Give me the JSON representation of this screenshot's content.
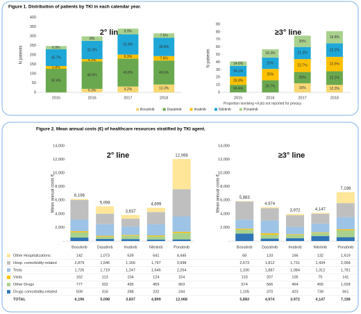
{
  "figure_titles": [
    "Figure 1. Distribution of patients by TKI in each calendar year.",
    "Figure 2. Mean annual costs (€) of healthcare resources stratified by TKI agent."
  ],
  "chart_data": [
    {
      "type": "stacked_bar",
      "stack": "percent",
      "title": "2° line",
      "ylabel": "N patients",
      "categories": [
        "2015",
        "2016",
        "2017",
        "2018"
      ],
      "totals": [
        250,
        300,
        340,
        315
      ],
      "ylim": [
        0,
        400
      ],
      "yticks": [
        0,
        50,
        100,
        150,
        200,
        250,
        300,
        350,
        400
      ],
      "series": [
        {
          "name": "Bosutinib",
          "color": "#f7d774",
          "values": [
            0,
            6.3,
            9.2,
            13.3
          ],
          "value_labels": [
            "0%",
            "6.3%",
            "9.2%",
            "13.3%"
          ]
        },
        {
          "name": "Dasatinib",
          "color": "#6aa84f",
          "values": [
            50.4,
            48.6,
            43.8,
            40.6
          ],
          "value_labels": [
            "50.4%",
            "48.6%",
            "43.8%",
            "40.6%"
          ]
        },
        {
          "name": "Imatinib",
          "color": "#ffc000",
          "values": [
            5.8,
            4.3,
            6.3,
            7.6
          ],
          "value_labels": [
            "5.8%",
            "4.3%",
            "6.3%",
            "7.6%"
          ]
        },
        {
          "name": "Nilotinib",
          "color": "#1fa7d8",
          "values": [
            35.7,
            32.3,
            31.8,
            30.8
          ],
          "value_labels": [
            "35.7%",
            "32.3%",
            "31.8%",
            "30.8%"
          ]
        },
        {
          "name": "Ponatinib",
          "color": "#a9d18e",
          "values": [
            6.9,
            8,
            8.9,
            7.6
          ],
          "value_labels": [
            "6.9%",
            "8%",
            "8.9%",
            "7.6%"
          ]
        }
      ]
    },
    {
      "type": "stacked_bar",
      "stack": "percent",
      "title": "≥3° line",
      "ylabel": "N patients",
      "note": "Proportion involving <4 pts not reported for privacy.",
      "categories": [
        "2015",
        "2016",
        "2017",
        "2018"
      ],
      "totals": [
        41,
        60,
        75,
        81
      ],
      "ylim": [
        0,
        90
      ],
      "yticks": [
        0,
        10,
        20,
        30,
        40,
        50,
        60,
        70,
        80,
        90
      ],
      "series": [
        {
          "name": "Bosutinib",
          "color": "#f7d774",
          "values": [
            null,
            null,
            16,
            12.3
          ],
          "value_labels": [
            null,
            null,
            "16%",
            "12.3%"
          ]
        },
        {
          "name": "Dasatinib",
          "color": "#6aa84f",
          "values": [
            24.4,
            26.7,
            20,
            22.2
          ],
          "value_labels": [
            "24.4%",
            "26.7%",
            "20%",
            "22.2%"
          ]
        },
        {
          "name": "Imatinib",
          "color": "#ffc000",
          "values": [
            26.8,
            25,
            22.7,
            23.5
          ],
          "value_labels": [
            "26.8%",
            "25%",
            "22.7%",
            "23.5%"
          ]
        },
        {
          "name": "Nilotinib",
          "color": "#1fa7d8",
          "values": [
            34.1,
            25,
            21.3,
            22.2
          ],
          "value_labels": [
            "34.1%",
            "25%",
            "21.3%",
            "22.2%"
          ]
        },
        {
          "name": "Ponatinib",
          "color": "#a9d18e",
          "values": [
            14.6,
            18.3,
            20,
            19.8
          ],
          "value_labels": [
            "14.6%",
            "18.3%",
            "20%",
            "19.8%"
          ]
        }
      ]
    },
    {
      "type": "stacked_bar",
      "stack": "absolute",
      "title": "2° line",
      "ylabel": "Mean annual costs €",
      "total_label": "TOTAL",
      "categories": [
        "Bosutinib",
        "Dasatinib",
        "Imatinib",
        "Nilotinib",
        "Ponatinib"
      ],
      "totals": [
        6196,
        5098,
        3837,
        4899,
        12068
      ],
      "total_labels": [
        "6,196",
        "5,098",
        "3,837",
        "4,899",
        "12,068"
      ],
      "ylim": [
        0,
        14000
      ],
      "yticks": [
        {
          "value": 0,
          "label": "-"
        },
        {
          "value": 2000,
          "label": "2,000"
        },
        {
          "value": 4000,
          "label": "4,000"
        },
        {
          "value": 6000,
          "label": "6,000"
        },
        {
          "value": 8000,
          "label": "8,000"
        },
        {
          "value": 10000,
          "label": "10,000"
        },
        {
          "value": 12000,
          "label": "12,000"
        },
        {
          "value": 14000,
          "label": "14,000"
        }
      ],
      "series": [
        {
          "name": "Drugs comorbidity-related",
          "color": "#2e75b6",
          "values": [
            509,
            316,
            288,
            232,
            244
          ],
          "value_labels": [
            "509",
            "316",
            "288",
            "232",
            "244"
          ]
        },
        {
          "name": "Other Drugs",
          "color": "#a9d18e",
          "values": [
            777,
            332,
            495,
            459,
            963
          ],
          "value_labels": [
            "777",
            "332",
            "495",
            "459",
            "963"
          ]
        },
        {
          "name": "Visits",
          "color": "#ffc000",
          "values": [
            162,
            113,
            104,
            124,
            154
          ],
          "value_labels": [
            "162",
            "113",
            "104",
            "124",
            "154"
          ]
        },
        {
          "name": "Tests",
          "color": "#9dc3e6",
          "values": [
            1726,
            1719,
            1247,
            1646,
            2264
          ],
          "value_labels": [
            "1,726",
            "1,719",
            "1,247",
            "1,646",
            "2,264"
          ]
        },
        {
          "name": "Hosp. comorbidity-related",
          "color": "#bfbfbf",
          "values": [
            2879,
            1546,
            1166,
            1797,
            3998
          ],
          "value_labels": [
            "2,879",
            "1,546",
            "1,166",
            "1,797",
            "3,998"
          ]
        },
        {
          "name": "Other Hospitalizations",
          "color": "#ffe699",
          "values": [
            142,
            1073,
            539,
            641,
            4445
          ],
          "value_labels": [
            "142",
            "1,073",
            "539",
            "641",
            "4,445"
          ]
        }
      ]
    },
    {
      "type": "stacked_bar",
      "stack": "absolute",
      "title": "≥3° line",
      "ylabel": "Mean annual costs €",
      "categories": [
        "Bosutinib",
        "Dasatinib",
        "Imatinib",
        "Nilotinib",
        "Ponatinib"
      ],
      "totals": [
        5883,
        4974,
        3972,
        4147,
        7198
      ],
      "total_labels": [
        "5,883",
        "4,974",
        "3,972",
        "4,147",
        "7,198"
      ],
      "ylim": [
        0,
        14000
      ],
      "yticks": [
        {
          "value": 0,
          "label": "-"
        },
        {
          "value": 2000,
          "label": "2,000"
        },
        {
          "value": 4000,
          "label": "4,000"
        },
        {
          "value": 6000,
          "label": "6,000"
        },
        {
          "value": 8000,
          "label": "8,000"
        },
        {
          "value": 10000,
          "label": "10,000"
        },
        {
          "value": 12000,
          "label": "12,000"
        },
        {
          "value": 14000,
          "label": "14,000"
        }
      ],
      "series": [
        {
          "name": "Drugs comorbidity-related",
          "color": "#2e75b6",
          "values": [
            1105,
            370,
            423,
            739,
            561
          ],
          "value_labels": [
            "1,105",
            "370",
            "423",
            "739",
            "561"
          ]
        },
        {
          "name": "Other Drugs",
          "color": "#a9d18e",
          "values": [
            574,
            566,
            464,
            455,
            1028
          ],
          "value_labels": [
            "574",
            "566",
            "464",
            "455",
            "1,028"
          ]
        },
        {
          "name": "Visits",
          "color": "#ffc000",
          "values": [
            133,
            207,
            105,
            75,
            141
          ],
          "value_labels": [
            "133",
            "207",
            "105",
            "75",
            "141"
          ]
        },
        {
          "name": "Tests",
          "color": "#9dc3e6",
          "values": [
            1330,
            1887,
            1084,
            1312,
            1781
          ],
          "value_labels": [
            "1,330",
            "1,887",
            "1,084",
            "1,312",
            "1,781"
          ]
        },
        {
          "name": "Hosp. comorbidity-related",
          "color": "#bfbfbf",
          "values": [
            2673,
            1812,
            1731,
            1434,
            2068
          ],
          "value_labels": [
            "2,673",
            "1,812",
            "1,731",
            "1,434",
            "2,068"
          ]
        },
        {
          "name": "Other Hospitalizations",
          "color": "#ffe699",
          "values": [
            68,
            133,
            166,
            132,
            1619
          ],
          "value_labels": [
            "68",
            "133",
            "166",
            "132",
            "1,619"
          ]
        }
      ]
    }
  ]
}
